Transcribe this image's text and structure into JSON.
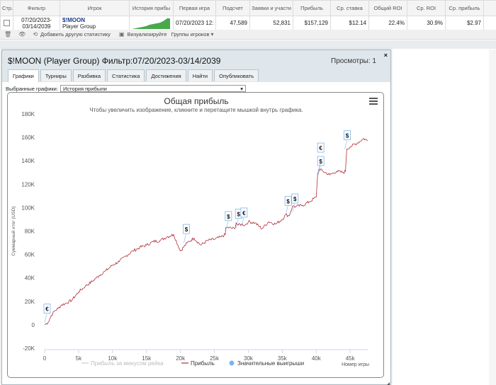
{
  "table": {
    "headers": [
      "Стр.",
      "Фильтр",
      "Игрок",
      "История прибы",
      "Первая игра",
      "Подсчет",
      "Заявки и участи",
      "Прибыль",
      "Ср. ставка",
      "Общий ROI",
      "Ср. ROI",
      "Ср. прибыль"
    ],
    "row": {
      "filter_from": "07/20/2023-",
      "filter_to": "03/14/2039",
      "player_name": "$!MOON",
      "player_group": "Player Group",
      "first_game": "07/20/2023 12:",
      "count": "47,589",
      "entries": "52,831",
      "profit": "$157,129",
      "avg_stake": "$12.14",
      "total_roi": "22.4%",
      "avg_roi": "30.9%",
      "avg_profit": "$2.97"
    }
  },
  "toolbar": {
    "add_stat": "Добавить другую статистику",
    "visualize": "Визуализируйте",
    "player_groups": "Группы игроков"
  },
  "dialog": {
    "title": "$!MOON (Player Group) Фильтр:07/20/2023-03/14/2039",
    "views": "Просмотры: 1",
    "close": "×",
    "tabs": [
      "Графики",
      "Турниры",
      "Разбивка",
      "Статистика",
      "Достижения",
      "Найти",
      "Опубликовать"
    ],
    "select_label": "Выбранные графики:",
    "select_value": "История прибыли"
  },
  "chart_data": {
    "type": "line",
    "title": "Общая прибыль",
    "subtitle": "Чтобы увеличить изображение, кликните и перетащите мышкой внутрь графика.",
    "ylabel": "Суммарный итог (USD)",
    "xlabel": "Номер игры",
    "ylim": [
      -20000,
      180000
    ],
    "xlim": [
      0,
      47589
    ],
    "y_ticks": [
      "-20K",
      "0",
      "20K",
      "40K",
      "60K",
      "80K",
      "100K",
      "120K",
      "140K",
      "160K",
      "180K"
    ],
    "x_ticks": [
      "0",
      "5k",
      "10k",
      "15k",
      "20k",
      "25k",
      "30k",
      "35k",
      "40k",
      "45k"
    ],
    "legend": [
      "Прибыль за минусом рейка",
      "Прибыль",
      "Значительные выигрыши"
    ],
    "legend_colors": [
      "#cccccc",
      "#b0303a",
      "#7cb5ec"
    ],
    "series": [
      {
        "name": "Прибыль",
        "x": [
          0,
          500,
          1000,
          1500,
          2000,
          2500,
          3000,
          4000,
          5000,
          6000,
          7000,
          8000,
          9000,
          10000,
          11000,
          12000,
          13000,
          14000,
          15000,
          16000,
          17000,
          18000,
          19000,
          20000,
          21000,
          22000,
          23000,
          24000,
          25000,
          26000,
          26600,
          26700,
          27000,
          28000,
          28200,
          28500,
          29000,
          29500,
          30000,
          31000,
          32000,
          33000,
          34000,
          35000,
          35500,
          36000,
          36500,
          37000,
          38000,
          39000,
          40000,
          40200,
          40400,
          41000,
          42000,
          43000,
          44000,
          44300,
          44500,
          45000,
          46000,
          47000,
          47589
        ],
        "y": [
          0,
          2000,
          8000,
          12000,
          14000,
          17000,
          18000,
          21000,
          28000,
          33000,
          37000,
          42000,
          46000,
          51000,
          54000,
          59000,
          63000,
          66000,
          68000,
          71000,
          72000,
          75000,
          77000,
          63000,
          70000,
          74000,
          68000,
          72000,
          73000,
          75000,
          77000,
          83000,
          83000,
          82000,
          87000,
          85000,
          86000,
          85000,
          88000,
          87000,
          82000,
          88000,
          86000,
          90000,
          94000,
          93000,
          101000,
          101000,
          102000,
          105000,
          109000,
          128000,
          133000,
          131000,
          128000,
          131000,
          130000,
          131000,
          150000,
          152000,
          155000,
          159000,
          157129
        ]
      }
    ],
    "markers": [
      {
        "x": 0,
        "y": 2000,
        "label": "€"
      },
      {
        "x": 20500,
        "y": 70000,
        "label": "$"
      },
      {
        "x": 26700,
        "y": 81000,
        "label": "$"
      },
      {
        "x": 28200,
        "y": 83000,
        "label": "$"
      },
      {
        "x": 29000,
        "y": 84000,
        "label": "€"
      },
      {
        "x": 35500,
        "y": 94000,
        "label": "$"
      },
      {
        "x": 36500,
        "y": 96000,
        "label": "$"
      },
      {
        "x": 40300,
        "y": 128000,
        "label": "$"
      },
      {
        "x": 40300,
        "y": 131000,
        "label": "€"
      },
      {
        "x": 44200,
        "y": 150000,
        "label": "$"
      }
    ]
  }
}
